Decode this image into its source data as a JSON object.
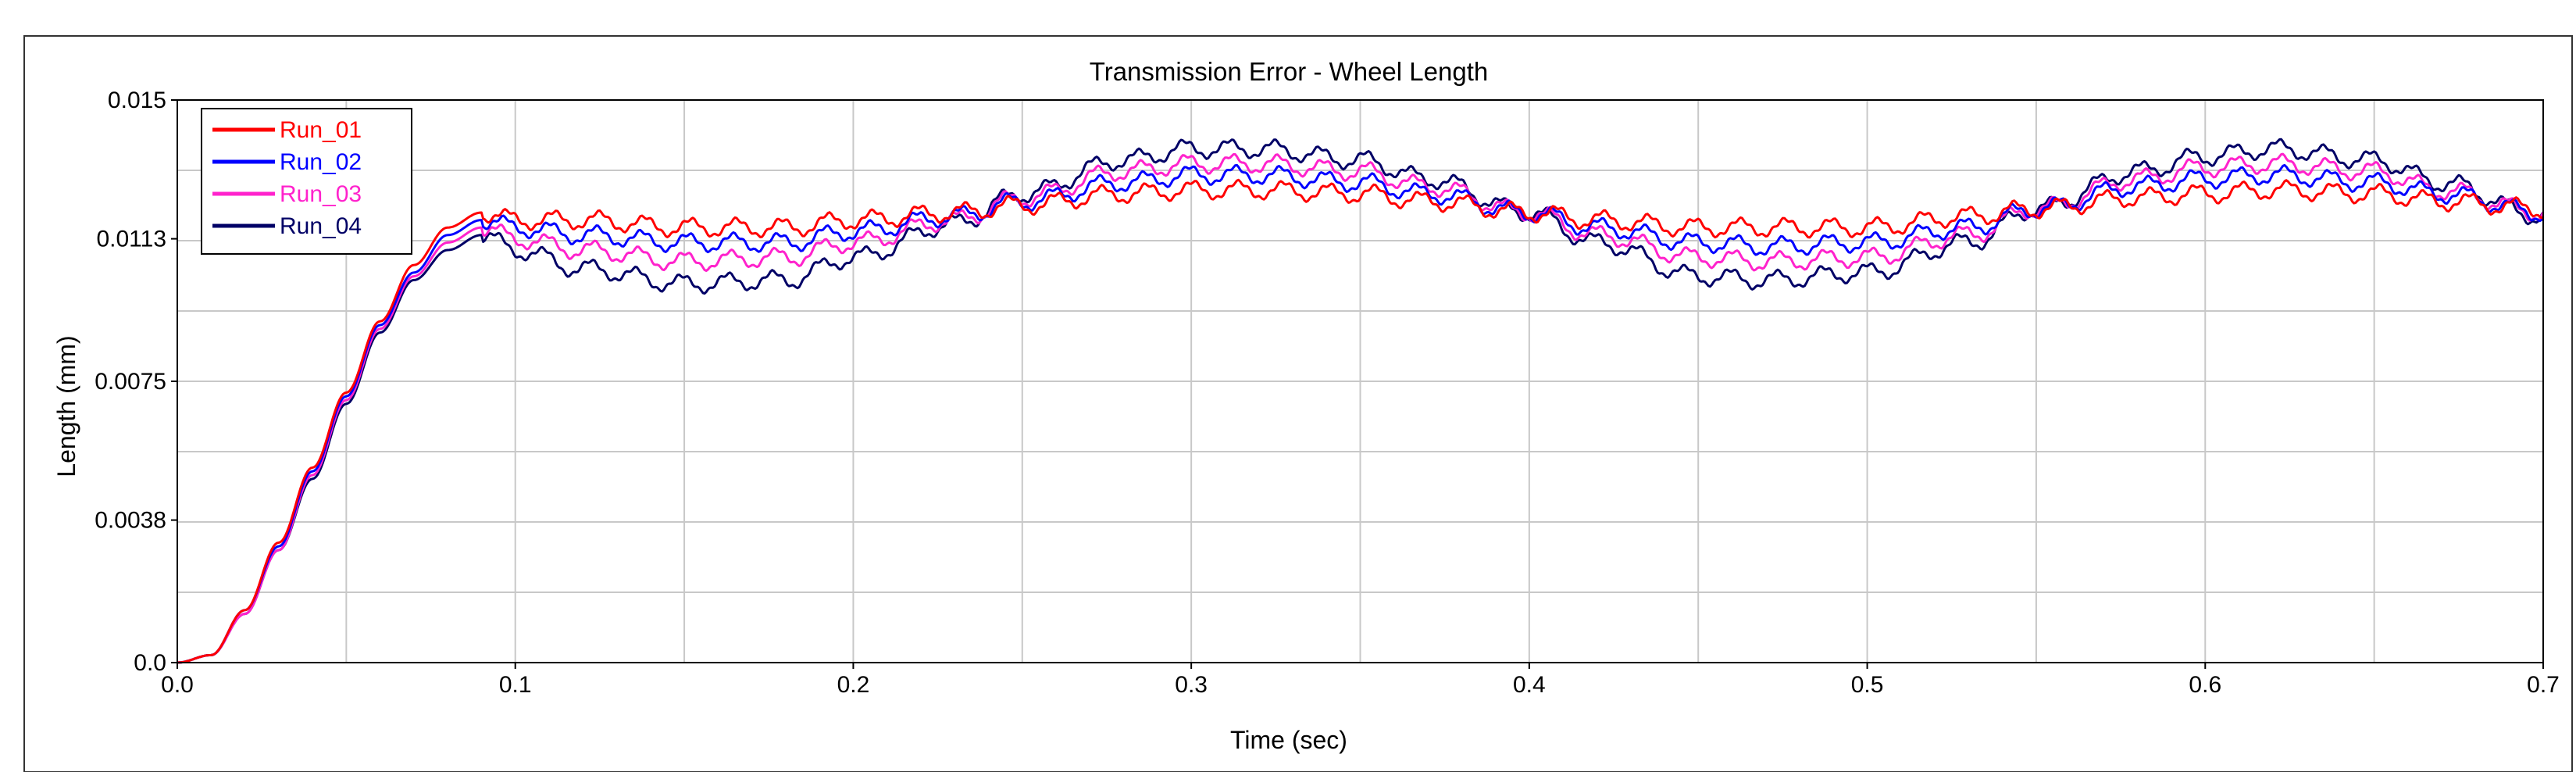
{
  "chart_data": {
    "type": "line",
    "title": "Transmission Error - Wheel Length",
    "xlabel": "Time (sec)",
    "ylabel": "Length (mm)",
    "xlim": [
      0,
      0.7
    ],
    "ylim": [
      0,
      0.015
    ],
    "xticks": [
      0.0,
      0.1,
      0.2,
      0.3,
      0.4,
      0.5,
      0.6,
      0.7
    ],
    "xtick_labels": [
      "0.0",
      "0.1",
      "0.2",
      "0.3",
      "0.4",
      "0.5",
      "0.6",
      "0.7"
    ],
    "yticks": [
      0.0,
      0.0038,
      0.0075,
      0.0113,
      0.015
    ],
    "ytick_labels": [
      "0.0",
      "0.0038",
      "0.0075",
      "0.0113",
      "0.015"
    ],
    "grid": true,
    "legend_position": "top-left",
    "series": [
      {
        "name": "Run_01",
        "color": "#ff0000",
        "x": [
          0,
          0.01,
          0.02,
          0.03,
          0.04,
          0.05,
          0.06,
          0.07,
          0.08,
          0.09,
          0.1,
          0.12,
          0.15,
          0.18,
          0.2,
          0.23,
          0.25,
          0.28,
          0.3,
          0.32,
          0.35,
          0.37,
          0.4,
          0.42,
          0.45,
          0.47,
          0.5,
          0.53,
          0.55,
          0.58,
          0.6,
          0.62,
          0.65,
          0.67,
          0.7
        ],
        "y": [
          0,
          0.0002,
          0.0014,
          0.0032,
          0.0052,
          0.0072,
          0.0091,
          0.0106,
          0.0116,
          0.012,
          0.0118,
          0.0118,
          0.0116,
          0.0116,
          0.0118,
          0.012,
          0.0122,
          0.0125,
          0.0126,
          0.0126,
          0.0125,
          0.0123,
          0.012,
          0.0118,
          0.0116,
          0.0116,
          0.0116,
          0.0119,
          0.0121,
          0.0124,
          0.0125,
          0.0126,
          0.0125,
          0.0123,
          0.0121
        ]
      },
      {
        "name": "Run_02",
        "color": "#0000ff",
        "x": [
          0,
          0.01,
          0.02,
          0.03,
          0.04,
          0.05,
          0.06,
          0.07,
          0.08,
          0.09,
          0.1,
          0.12,
          0.15,
          0.18,
          0.2,
          0.23,
          0.25,
          0.28,
          0.3,
          0.32,
          0.35,
          0.37,
          0.4,
          0.42,
          0.45,
          0.47,
          0.5,
          0.53,
          0.55,
          0.58,
          0.6,
          0.62,
          0.65,
          0.67,
          0.7
        ],
        "y": [
          0,
          0.0002,
          0.0014,
          0.0031,
          0.0051,
          0.0071,
          0.009,
          0.0104,
          0.0114,
          0.0118,
          0.0116,
          0.0114,
          0.0112,
          0.0112,
          0.0115,
          0.0119,
          0.0123,
          0.0128,
          0.013,
          0.013,
          0.0128,
          0.0125,
          0.012,
          0.0116,
          0.0112,
          0.0111,
          0.0112,
          0.0116,
          0.0121,
          0.0127,
          0.0129,
          0.013,
          0.0128,
          0.0125,
          0.012
        ]
      },
      {
        "name": "Run_03",
        "color": "#ff22cc",
        "x": [
          0,
          0.01,
          0.02,
          0.03,
          0.04,
          0.05,
          0.06,
          0.07,
          0.08,
          0.09,
          0.1,
          0.12,
          0.15,
          0.18,
          0.2,
          0.23,
          0.25,
          0.28,
          0.3,
          0.32,
          0.35,
          0.37,
          0.4,
          0.42,
          0.45,
          0.47,
          0.5,
          0.53,
          0.55,
          0.58,
          0.6,
          0.62,
          0.65,
          0.67,
          0.7
        ],
        "y": [
          0,
          0.0002,
          0.0013,
          0.003,
          0.005,
          0.007,
          0.0089,
          0.0103,
          0.0112,
          0.0116,
          0.0113,
          0.011,
          0.0107,
          0.0108,
          0.0112,
          0.0118,
          0.0124,
          0.0131,
          0.0133,
          0.0133,
          0.0131,
          0.0127,
          0.012,
          0.0114,
          0.0108,
          0.0107,
          0.0108,
          0.0114,
          0.0121,
          0.0129,
          0.0132,
          0.0133,
          0.0131,
          0.0126,
          0.012
        ]
      },
      {
        "name": "Run_04",
        "color": "#000066",
        "x": [
          0,
          0.01,
          0.02,
          0.03,
          0.04,
          0.05,
          0.06,
          0.07,
          0.08,
          0.09,
          0.1,
          0.12,
          0.15,
          0.18,
          0.2,
          0.23,
          0.25,
          0.28,
          0.3,
          0.32,
          0.35,
          0.37,
          0.4,
          0.42,
          0.45,
          0.47,
          0.5,
          0.53,
          0.55,
          0.58,
          0.6,
          0.62,
          0.65,
          0.67,
          0.7
        ],
        "y": [
          0,
          0.0002,
          0.0013,
          0.003,
          0.0049,
          0.0069,
          0.0088,
          0.0102,
          0.011,
          0.0114,
          0.011,
          0.0105,
          0.0101,
          0.0102,
          0.0108,
          0.0117,
          0.0125,
          0.0134,
          0.0137,
          0.0137,
          0.0134,
          0.0129,
          0.012,
          0.0112,
          0.0103,
          0.0102,
          0.0104,
          0.0112,
          0.0121,
          0.0131,
          0.0135,
          0.0137,
          0.0134,
          0.0128,
          0.0119
        ]
      }
    ]
  }
}
